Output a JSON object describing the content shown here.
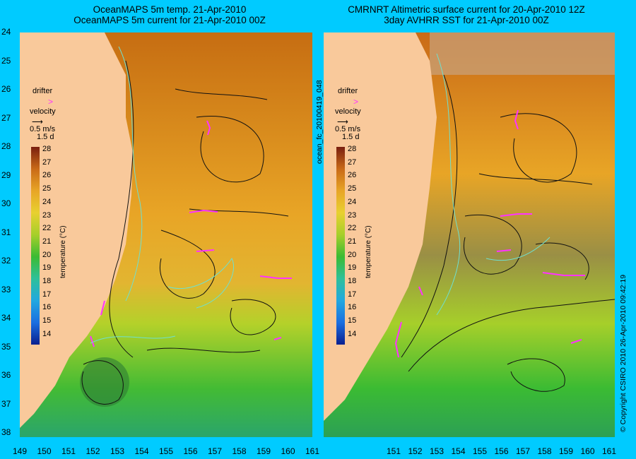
{
  "left_panel": {
    "title_line1": "OceanMAPS 5m temp. 21-Apr-2010",
    "title_line2": "OceanMAPS 5m current for 21-Apr-2010 00Z",
    "legend": {
      "drifter": "drifter",
      "velocity": "velocity",
      "speed": "0.5 m/s",
      "duration": "1.5 d"
    },
    "colorbar_label": "temperature (°C)"
  },
  "right_panel": {
    "title_line1": "CMRNRT Altimetric surface current for 20-Apr-2010 12Z",
    "title_line2": "3day AVHRR SST for 21-Apr-2010 00Z",
    "legend": {
      "drifter": "drifter",
      "velocity": "velocity",
      "speed": "0.5 m/s",
      "duration": "1.5 d"
    },
    "colorbar_label": "temperature (°C)"
  },
  "side_label": "ocean_fc_20100419_048",
  "copyright": "© Copyright CSIRO 2010   26-Apr-2010 09:42:19",
  "colorbar_ticks": [
    "28",
    "27",
    "26",
    "25",
    "24",
    "23",
    "22",
    "21",
    "20",
    "19",
    "18",
    "17",
    "16",
    "15",
    "14"
  ],
  "y_ticks": [
    "24",
    "25",
    "26",
    "27",
    "28",
    "29",
    "30",
    "31",
    "32",
    "33",
    "34",
    "35",
    "36",
    "37",
    "38"
  ],
  "x_ticks_left": [
    "149",
    "150",
    "151",
    "152",
    "153",
    "154",
    "155",
    "156",
    "157",
    "158",
    "159",
    "160",
    "161"
  ],
  "x_ticks_right": [
    "151",
    "152",
    "153",
    "154",
    "155",
    "156",
    "157",
    "158",
    "159",
    "160",
    "161"
  ],
  "colors": {
    "background": "#00cbff",
    "land": "#f9c99b",
    "warm": "#e89a1e",
    "cool": "#2fb33a",
    "contour": "#6fe0d0",
    "drifter": "#ff33ff"
  }
}
